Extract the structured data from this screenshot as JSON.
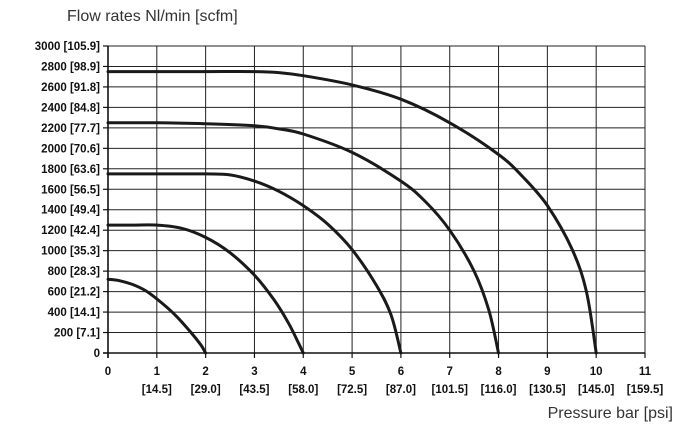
{
  "chart_data": {
    "type": "line",
    "ylabel": "Flow rates Nl/min [scfm]",
    "xlabel": "Pressure bar [psi]",
    "xlim": [
      0,
      11
    ],
    "ylim": [
      0,
      3000
    ],
    "grid": true,
    "y_ticks": [
      {
        "value": 3000,
        "label": "3000 [105.9]"
      },
      {
        "value": 2800,
        "label": "2800 [98.9]"
      },
      {
        "value": 2600,
        "label": "2600 [91.8]"
      },
      {
        "value": 2400,
        "label": "2400 [84.8]"
      },
      {
        "value": 2200,
        "label": "2200 [77.7]"
      },
      {
        "value": 2000,
        "label": "2000 [70.6]"
      },
      {
        "value": 1800,
        "label": "1800 [63.6]"
      },
      {
        "value": 1600,
        "label": "1600 [56.5]"
      },
      {
        "value": 1400,
        "label": "1400 [49.4]"
      },
      {
        "value": 1200,
        "label": "1200 [42.4]"
      },
      {
        "value": 1000,
        "label": "1000 [35.3]"
      },
      {
        "value": 800,
        "label": "800 [28.3]"
      },
      {
        "value": 600,
        "label": "600 [21.2]"
      },
      {
        "value": 400,
        "label": "400 [14.1]"
      },
      {
        "value": 200,
        "label": "200 [7.1]"
      },
      {
        "value": 0,
        "label": "0"
      }
    ],
    "x_ticks": [
      {
        "value": 0,
        "label": "0",
        "psi": ""
      },
      {
        "value": 1,
        "label": "1",
        "psi": "[14.5]"
      },
      {
        "value": 2,
        "label": "2",
        "psi": "[29.0]"
      },
      {
        "value": 3,
        "label": "3",
        "psi": "[43.5]"
      },
      {
        "value": 4,
        "label": "4",
        "psi": "[58.0]"
      },
      {
        "value": 5,
        "label": "5",
        "psi": "[72.5]"
      },
      {
        "value": 6,
        "label": "6",
        "psi": "[87.0]"
      },
      {
        "value": 7,
        "label": "7",
        "psi": "[101.5]"
      },
      {
        "value": 8,
        "label": "8",
        "psi": "[116.0]"
      },
      {
        "value": 9,
        "label": "9",
        "psi": "[130.5]"
      },
      {
        "value": 10,
        "label": "10",
        "psi": "[145.0]"
      },
      {
        "value": 11,
        "label": "11",
        "psi": "[159.5]"
      }
    ],
    "series": [
      {
        "x": [
          0,
          0.2,
          0.5,
          0.8,
          1.1,
          1.4,
          1.7,
          1.9,
          2.0
        ],
        "y": [
          720,
          710,
          670,
          600,
          490,
          360,
          200,
          80,
          0
        ]
      },
      {
        "x": [
          0,
          0.5,
          1.0,
          1.5,
          2.0,
          2.5,
          3.0,
          3.4,
          3.7,
          3.9,
          4.0
        ],
        "y": [
          1250,
          1250,
          1250,
          1220,
          1130,
          980,
          760,
          520,
          290,
          100,
          0
        ]
      },
      {
        "x": [
          0,
          1,
          2,
          2.5,
          3,
          3.5,
          4,
          4.5,
          5,
          5.5,
          5.8,
          6.0
        ],
        "y": [
          1750,
          1750,
          1750,
          1740,
          1680,
          1580,
          1440,
          1260,
          1010,
          660,
          370,
          0
        ]
      },
      {
        "x": [
          0,
          1,
          2,
          3,
          3.5,
          4,
          5,
          6,
          6.5,
          7,
          7.5,
          7.8,
          8.0
        ],
        "y": [
          2250,
          2250,
          2240,
          2220,
          2190,
          2140,
          1960,
          1680,
          1480,
          1200,
          800,
          420,
          0
        ]
      },
      {
        "x": [
          0,
          1,
          2,
          3,
          3.5,
          4,
          5,
          6,
          7,
          8,
          8.5,
          9,
          9.5,
          9.8,
          10.0
        ],
        "y": [
          2750,
          2750,
          2750,
          2750,
          2740,
          2710,
          2620,
          2480,
          2250,
          1940,
          1720,
          1440,
          1020,
          600,
          0
        ]
      }
    ]
  }
}
